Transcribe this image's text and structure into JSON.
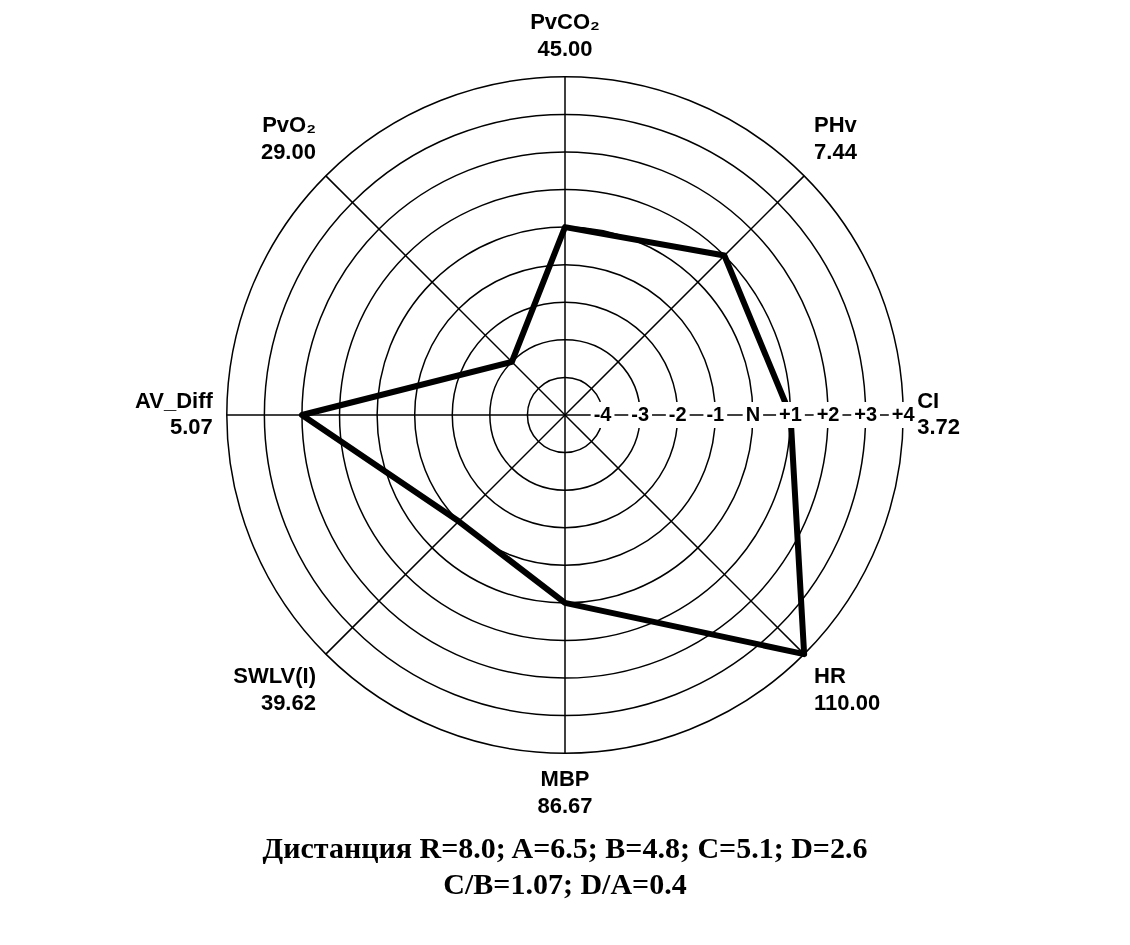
{
  "chart_data": {
    "type": "radar",
    "categories": [
      "PvCO₂\n45.00",
      "PHv\n7.44",
      "CI\n3.72",
      "HR\n110.00",
      "MBP\n86.67",
      "SWLV(I)\n39.62",
      "AV_Diff\n5.07",
      "PvO₂\n29.00"
    ],
    "series": [
      {
        "color": "#000000",
        "values": [
          0,
          1,
          1,
          4,
          0,
          -1,
          2,
          -3
        ]
      }
    ],
    "ylim": [
      -5,
      4
    ],
    "yticks": [
      {
        "value": -4,
        "label": "-4"
      },
      {
        "value": -3,
        "label": "-3"
      },
      {
        "value": -2,
        "label": "-2"
      },
      {
        "value": -1,
        "label": "-1"
      },
      {
        "value": 0,
        "label": "N"
      },
      {
        "value": 1,
        "label": "+1"
      },
      {
        "value": 2,
        "label": "+2"
      },
      {
        "value": 3,
        "label": "+3"
      },
      {
        "value": 4,
        "label": "+4"
      }
    ],
    "grid": true,
    "legend": false,
    "marker": "none",
    "annotations": [
      "Дистанция R=8.0; A=6.5; B=4.8; C=5.1; D=2.6",
      "C/B=1.07; D/A=0.4"
    ]
  }
}
